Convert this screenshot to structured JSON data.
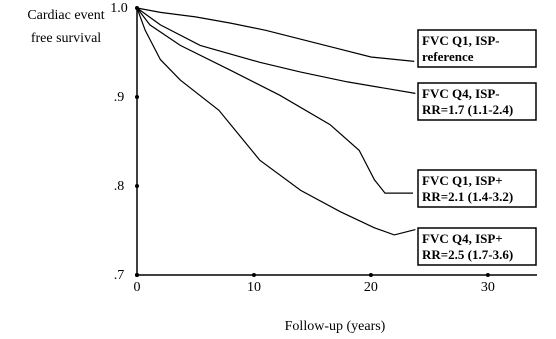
{
  "chart_data": {
    "type": "line",
    "y_label": [
      "Cardiac event",
      "free survival"
    ],
    "x_label": "Follow-up (years)",
    "xlim": [
      0,
      34.2
    ],
    "xticks": [
      0,
      10,
      20,
      30
    ],
    "ylim": [
      0.7,
      1.0
    ],
    "yticks": [
      {
        "value": 0.7,
        "label": ".7"
      },
      {
        "value": 0.8,
        "label": ".8"
      },
      {
        "value": 0.9,
        "label": ".9"
      },
      {
        "value": 1.0,
        "label": "1.0"
      }
    ],
    "series": [
      {
        "name": "FVC Q1, ISP-",
        "note": "reference",
        "color": "#000000",
        "x": [
          0,
          2,
          5,
          8,
          11,
          14,
          17,
          20,
          23.7
        ],
        "values": [
          1.0,
          0.995,
          0.99,
          0.983,
          0.975,
          0.965,
          0.955,
          0.945,
          0.94
        ]
      },
      {
        "name": "FVC Q4, ISP-",
        "note": "RR=1.7 (1.1-2.4)",
        "color": "#000000",
        "x": [
          0,
          2,
          5.4,
          10.5,
          14,
          18,
          23.8
        ],
        "values": [
          1.0,
          0.981,
          0.958,
          0.939,
          0.928,
          0.917,
          0.904
        ]
      },
      {
        "name": "FVC Q1, ISP+",
        "note": "RR=2.1 (1.4-3.2)",
        "color": "#000000",
        "x": [
          0,
          1.1,
          3.7,
          8,
          12.2,
          16.5,
          19,
          20.3,
          21.2,
          23.6
        ],
        "values": [
          1.0,
          0.981,
          0.958,
          0.93,
          0.902,
          0.869,
          0.84,
          0.807,
          0.792,
          0.792
        ]
      },
      {
        "name": "FVC Q4, ISP+",
        "note": "RR=2.5 (1.7-3.6)",
        "color": "#000000",
        "x": [
          0,
          0.7,
          2,
          3.7,
          7,
          10.5,
          14,
          17.4,
          20.3,
          22,
          23.8
        ],
        "values": [
          1.0,
          0.975,
          0.942,
          0.919,
          0.885,
          0.829,
          0.795,
          0.771,
          0.753,
          0.745,
          0.751
        ]
      }
    ]
  }
}
